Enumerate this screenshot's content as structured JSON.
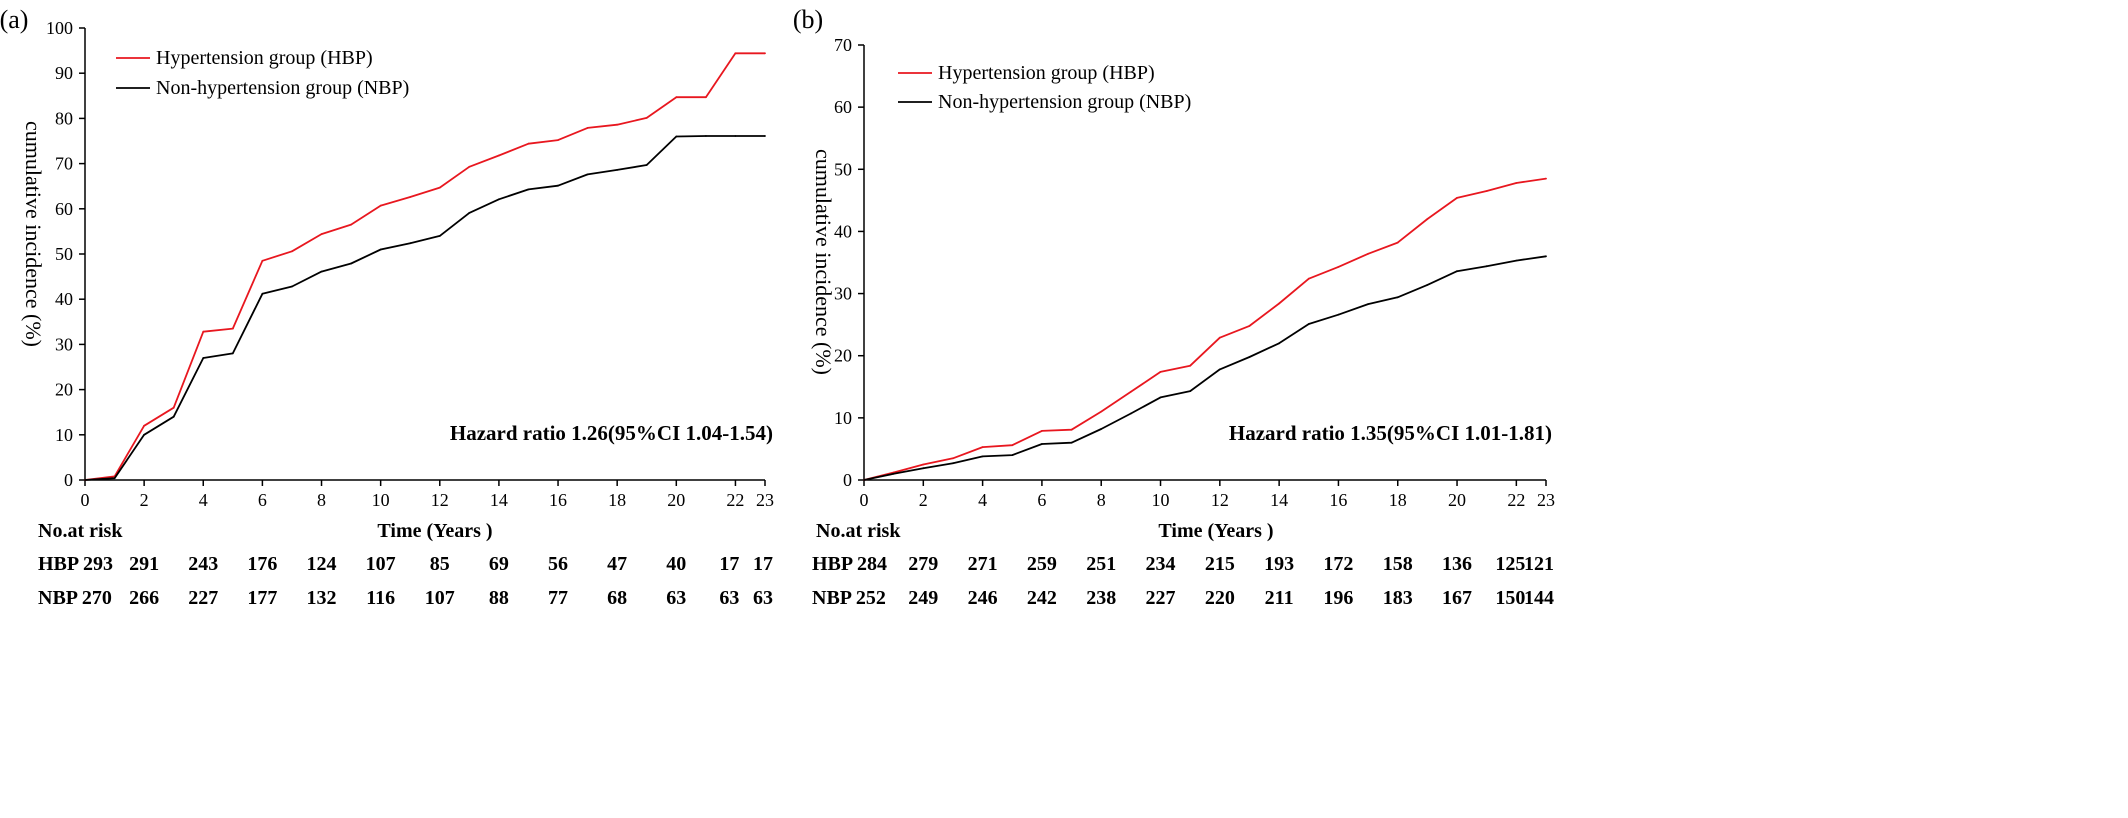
{
  "panels": [
    {
      "label": "(a)",
      "ylabel": "cumulative incidence (%)",
      "xlabel": "Time (Years )",
      "hazard_ratio": "Hazard ratio 1.26(95%CI 1.04-1.54)",
      "risk_header": "No.at risk",
      "risk_rows": [
        {
          "label": "HBP 293",
          "values": [
            "291",
            "243",
            "176",
            "124",
            "107",
            "85",
            "69",
            "56",
            "47",
            "40",
            "17",
            "17"
          ]
        },
        {
          "label": "NBP 270",
          "values": [
            "266",
            "227",
            "177",
            "132",
            "116",
            "107",
            "88",
            "77",
            "68",
            "63",
            "63",
            "63"
          ]
        }
      ]
    },
    {
      "label": "(b)",
      "ylabel": "cumulative incidence (%)",
      "xlabel": "Time (Years )",
      "hazard_ratio": "Hazard ratio 1.35(95%CI 1.01-1.81)",
      "risk_header": "No.at risk",
      "risk_rows": [
        {
          "label": "HBP 284",
          "values": [
            "279",
            "271",
            "259",
            "251",
            "234",
            "215",
            "193",
            "172",
            "158",
            "136",
            "125",
            "121"
          ]
        },
        {
          "label": "NBP 252",
          "values": [
            "249",
            "246",
            "242",
            "238",
            "227",
            "220",
            "211",
            "196",
            "183",
            "167",
            "150",
            "144"
          ]
        }
      ]
    }
  ],
  "chart_data": [
    {
      "type": "line",
      "ylim": [
        0,
        100
      ],
      "yticks": [
        0,
        10,
        20,
        30,
        40,
        50,
        60,
        70,
        80,
        90,
        100
      ],
      "xlim": [
        0,
        23
      ],
      "xticks": [
        0,
        2,
        4,
        6,
        8,
        10,
        12,
        14,
        16,
        18,
        20,
        22,
        23
      ],
      "risk_times": [
        2,
        4,
        6,
        8,
        10,
        12,
        14,
        16,
        18,
        20,
        22,
        23
      ],
      "legend_position": "top-left",
      "series": [
        {
          "name": "Hypertension group (HBP)",
          "color": "#e8171f",
          "x": [
            0,
            1,
            2,
            3,
            4,
            5,
            6,
            7,
            8,
            9,
            10,
            11,
            12,
            13,
            14,
            15,
            16,
            17,
            18,
            19,
            20,
            21,
            22,
            23
          ],
          "y": [
            0,
            0.8,
            12,
            16,
            32.8,
            33.5,
            48.5,
            50.6,
            54.4,
            56.5,
            60.7,
            62.6,
            64.7,
            69.3,
            71.8,
            74.4,
            75.2,
            77.9,
            78.6,
            80.1,
            84.7,
            84.7,
            94.4,
            94.4
          ]
        },
        {
          "name": "Non-hypertension group (NBP)",
          "color": "#000000",
          "x": [
            0,
            1,
            2,
            3,
            4,
            5,
            6,
            7,
            8,
            9,
            10,
            11,
            12,
            13,
            14,
            15,
            16,
            17,
            18,
            19,
            20,
            21,
            22,
            23
          ],
          "y": [
            0,
            0.4,
            10,
            14,
            27,
            28,
            41.2,
            42.8,
            46.1,
            47.9,
            51,
            52.4,
            54,
            59.1,
            62.1,
            64.3,
            65.1,
            67.6,
            68.6,
            69.7,
            76,
            76.1,
            76.1,
            76.1
          ]
        }
      ]
    },
    {
      "type": "line",
      "ylim": [
        0,
        70
      ],
      "yticks": [
        0,
        10,
        20,
        30,
        40,
        50,
        60,
        70
      ],
      "xlim": [
        0,
        23
      ],
      "xticks": [
        0,
        2,
        4,
        6,
        8,
        10,
        12,
        14,
        16,
        18,
        20,
        22,
        23
      ],
      "risk_times": [
        2,
        4,
        6,
        8,
        10,
        12,
        14,
        16,
        18,
        20,
        22,
        23
      ],
      "legend_position": "top-left",
      "series": [
        {
          "name": "Hypertension group (HBP)",
          "color": "#e8171f",
          "x": [
            0,
            1,
            2,
            3,
            4,
            5,
            6,
            7,
            8,
            9,
            10,
            11,
            12,
            13,
            14,
            15,
            16,
            17,
            18,
            19,
            20,
            21,
            22,
            23
          ],
          "y": [
            0,
            1.2,
            2.5,
            3.5,
            5.3,
            5.6,
            7.9,
            8.1,
            11,
            14.2,
            17.4,
            18.4,
            22.9,
            24.8,
            28.4,
            32.4,
            34.3,
            36.4,
            38.2,
            42,
            45.4,
            46.5,
            47.8,
            48.5
          ]
        },
        {
          "name": "Non-hypertension group (NBP)",
          "color": "#000000",
          "x": [
            0,
            1,
            2,
            3,
            4,
            5,
            6,
            7,
            8,
            9,
            10,
            11,
            12,
            13,
            14,
            15,
            16,
            17,
            18,
            19,
            20,
            21,
            22,
            23
          ],
          "y": [
            0,
            1,
            1.9,
            2.7,
            3.8,
            4,
            5.8,
            6,
            8.2,
            10.7,
            13.3,
            14.3,
            17.8,
            19.8,
            22,
            25.1,
            26.6,
            28.3,
            29.4,
            31.4,
            33.6,
            34.4,
            35.3,
            36
          ]
        }
      ]
    }
  ]
}
